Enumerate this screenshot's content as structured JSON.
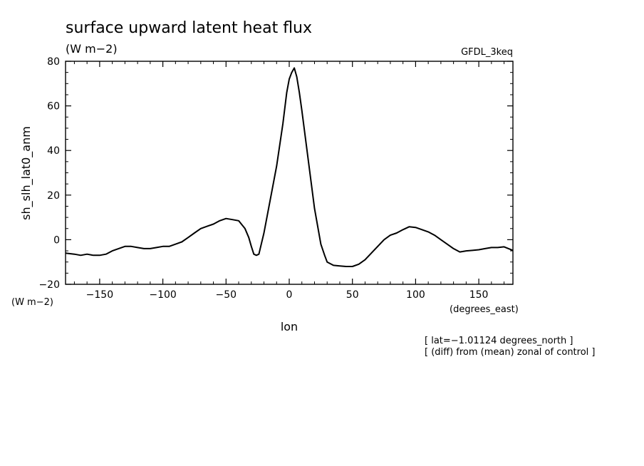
{
  "title": "surface upward latent heat flux",
  "title_units": "(W m−2)",
  "model_label": "GFDL_3keq",
  "ylabel": "sh_slh_lat0_anm",
  "y_units": "(W m−2)",
  "xlabel": "lon",
  "x_units": "(degrees_east)",
  "notes": [
    "[ lat=−1.01124 degrees_north ]",
    "[ (diff) from (mean) zonal of control ]"
  ],
  "chart_data": {
    "type": "line",
    "title": "surface upward latent heat flux",
    "xlabel": "lon",
    "ylabel": "sh_slh_lat0_anm",
    "xlim": [
      -177,
      177
    ],
    "ylim": [
      -20,
      80
    ],
    "xticks": [
      -150,
      -100,
      -50,
      0,
      50,
      100,
      150
    ],
    "xtick_labels": [
      "−150",
      "−100",
      "−50",
      "0",
      "50",
      "100",
      "150"
    ],
    "yticks": [
      -20,
      0,
      20,
      40,
      60,
      80
    ],
    "ytick_labels": [
      "−20",
      "0",
      "20",
      "40",
      "60",
      "80"
    ],
    "grid": false,
    "series": [
      {
        "x": [
          -177,
          -170,
          -165,
          -160,
          -155,
          -150,
          -145,
          -140,
          -135,
          -130,
          -125,
          -120,
          -115,
          -110,
          -105,
          -100,
          -95,
          -90,
          -85,
          -80,
          -75,
          -70,
          -65,
          -60,
          -55,
          -50,
          -45,
          -40,
          -35,
          -32,
          -30,
          -28,
          -26,
          -24,
          -20,
          -15,
          -10,
          -5,
          -2,
          0,
          2,
          4,
          6,
          8,
          10,
          15,
          20,
          25,
          28,
          30,
          35,
          40,
          45,
          50,
          55,
          60,
          65,
          70,
          75,
          80,
          85,
          90,
          95,
          100,
          105,
          110,
          115,
          120,
          125,
          130,
          135,
          140,
          145,
          150,
          155,
          160,
          165,
          170,
          177
        ],
        "y": [
          -6,
          -6.5,
          -7,
          -6.5,
          -7,
          -7,
          -6.5,
          -5,
          -4,
          -3,
          -3,
          -3.5,
          -4,
          -4,
          -3.5,
          -3,
          -3,
          -2,
          -1,
          1,
          3,
          5,
          6,
          7,
          8.5,
          9.5,
          9,
          8.5,
          5,
          1,
          -3,
          -6.5,
          -7,
          -6.5,
          3,
          18,
          33,
          52,
          66,
          72,
          75,
          77,
          73,
          66,
          58,
          36,
          14,
          -2,
          -7,
          -10,
          -11.5,
          -11.8,
          -12,
          -12,
          -11,
          -9,
          -6,
          -3,
          0,
          2,
          3,
          4.5,
          5.8,
          5.5,
          4.5,
          3.5,
          2,
          0,
          -2,
          -4,
          -5.5,
          -5,
          -4.8,
          -4.5,
          -4,
          -3.5,
          -3.5,
          -3.2,
          -4.8
        ]
      }
    ]
  }
}
